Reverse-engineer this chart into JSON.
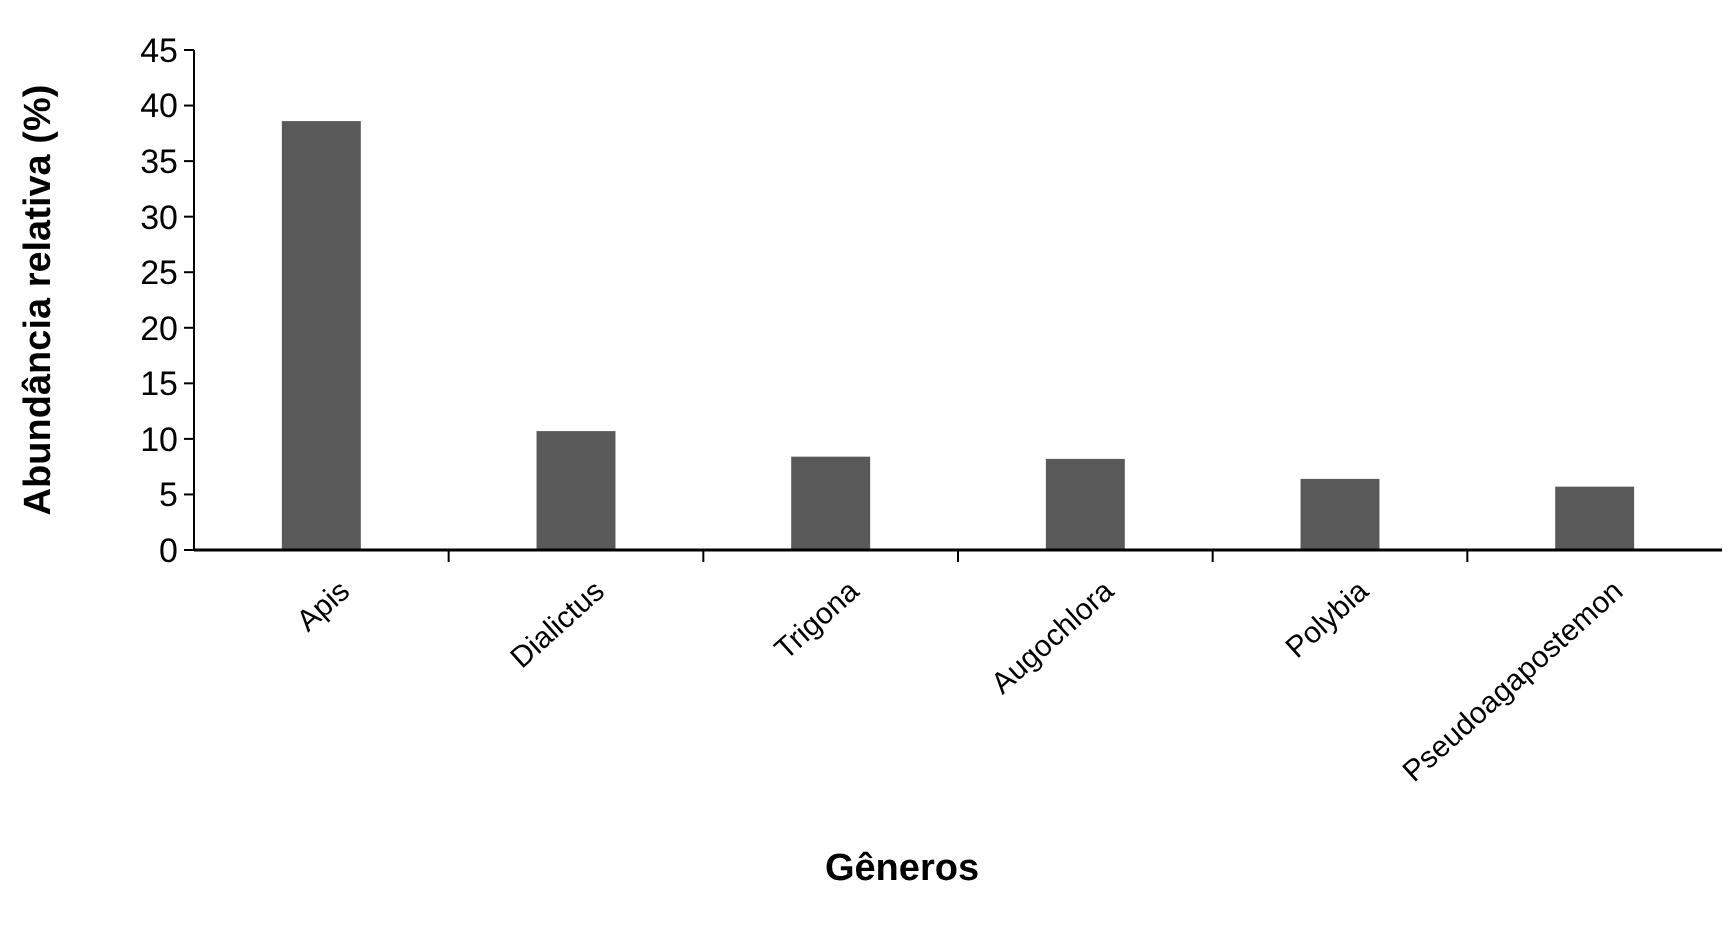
{
  "chart_data": {
    "type": "bar",
    "xlabel": "Gêneros",
    "ylabel": "Abundância relativa (%)",
    "categories": [
      "Apis",
      "Dialictus",
      "Trigona",
      "Augochlora",
      "Polybia",
      "Pseudoagapostemon"
    ],
    "values": [
      38.6,
      10.7,
      8.4,
      8.2,
      6.4,
      5.7
    ],
    "color": "#595959",
    "ylim": [
      0,
      45
    ],
    "yticks": [
      0,
      5,
      10,
      15,
      20,
      25,
      30,
      35,
      40,
      45
    ],
    "grid": false
  }
}
